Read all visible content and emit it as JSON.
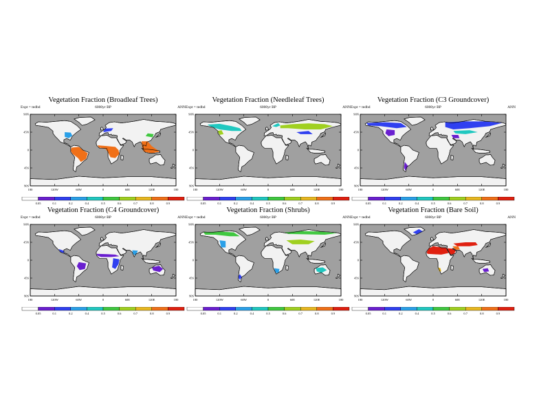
{
  "common": {
    "expt_label": "Expt = tedbd",
    "period_label": "6000yr BP",
    "season_label": "ANN",
    "lat_labels": [
      "90N",
      "45N",
      "0",
      "45S",
      "90S"
    ],
    "lon_labels": [
      "180",
      "120W",
      "60W",
      "0",
      "60E",
      "120E",
      "180"
    ],
    "colorbar_labels": [
      "0.05",
      "0.1",
      "0.2",
      "0.4",
      "0.5",
      "0.6",
      "0.7",
      "0.8",
      "0.9"
    ],
    "colorbar_colors": [
      "#ffffff",
      "#6a1fd0",
      "#3040f0",
      "#2aa0e8",
      "#20c8c0",
      "#40c840",
      "#a0d020",
      "#e8b820",
      "#f07018",
      "#e02010"
    ],
    "ocean_color": "#a0a0a0",
    "land_color": "#f2f2f2"
  },
  "panels": [
    {
      "title": "Vegetation Fraction (Broadleaf Trees)"
    },
    {
      "title": "Vegetation Fraction (Needleleaf Trees)"
    },
    {
      "title": "Vegetation Fraction (C3 Groundcover)"
    },
    {
      "title": "Vegetation Fraction (C4 Groundcover)"
    },
    {
      "title": "Vegetation Fraction (Shrubs)"
    },
    {
      "title": "Vegetation Fraction (Bare Soil)"
    }
  ]
}
